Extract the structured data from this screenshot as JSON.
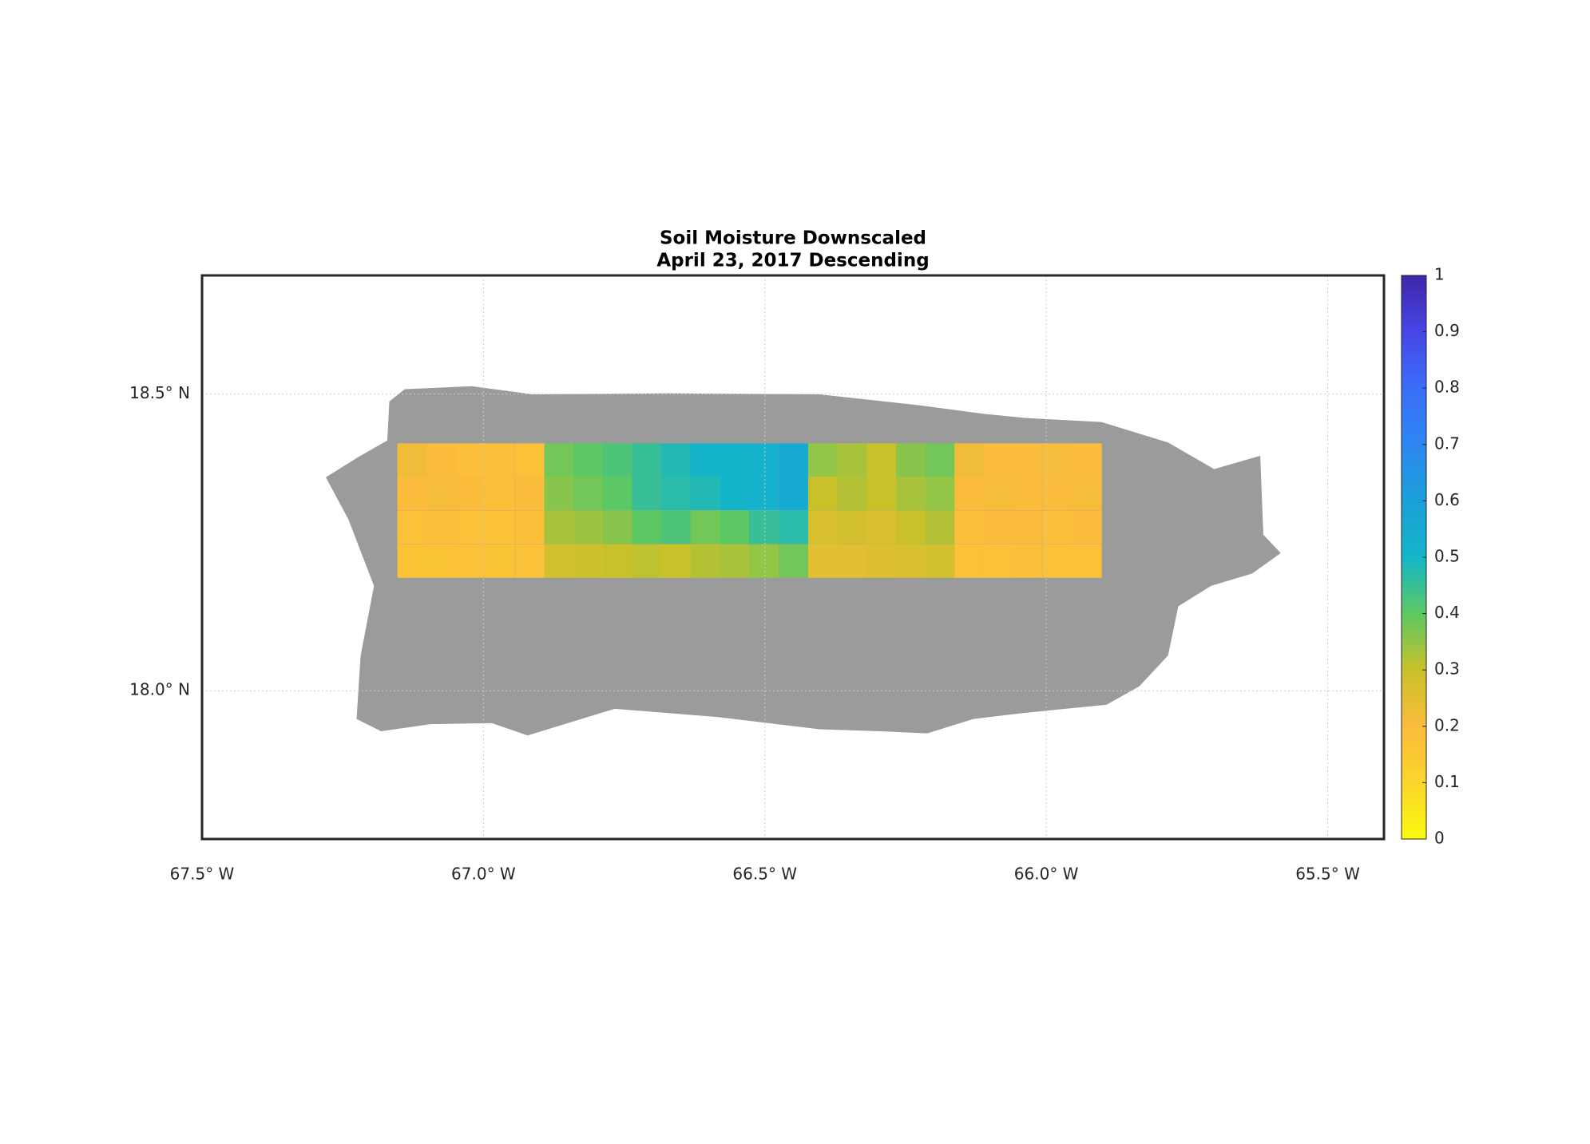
{
  "chart_data": {
    "type": "heatmap",
    "title": "Soil Moisture Downscaled",
    "subtitle": "April 23, 2017 Descending",
    "xlim": [
      -67.5,
      -65.4
    ],
    "ylim": [
      17.75,
      18.7
    ],
    "xticks": [
      {
        "value": -67.5,
        "label": "67.5° W"
      },
      {
        "value": -67.0,
        "label": "67.0° W"
      },
      {
        "value": -66.5,
        "label": "66.5° W"
      },
      {
        "value": -66.0,
        "label": "66.0° W"
      },
      {
        "value": -65.5,
        "label": "65.5° W"
      }
    ],
    "yticks": [
      {
        "value": 18.0,
        "label": "18.0° N"
      },
      {
        "value": 18.5,
        "label": "18.5° N"
      }
    ],
    "grid": true,
    "x": [
      -67.127,
      -67.075,
      -67.023,
      -66.971,
      -66.918,
      -66.866,
      -66.814,
      -66.762,
      -66.71,
      -66.658,
      -66.606,
      -66.554,
      -66.502,
      -66.449,
      -66.397,
      -66.345,
      -66.293,
      -66.241,
      -66.189,
      -66.137,
      -66.085,
      -66.033,
      -65.98,
      -65.928
    ],
    "y": [
      18.389,
      18.333,
      18.276,
      18.219
    ],
    "z": [
      [
        0.22,
        0.2,
        0.19,
        0.19,
        0.18,
        0.38,
        0.4,
        0.42,
        0.45,
        0.48,
        0.5,
        0.5,
        0.52,
        0.55,
        0.35,
        0.33,
        0.3,
        0.36,
        0.38,
        0.22,
        0.2,
        0.2,
        0.21,
        0.2
      ],
      [
        0.2,
        0.21,
        0.2,
        0.19,
        0.2,
        0.36,
        0.38,
        0.4,
        0.45,
        0.47,
        0.48,
        0.5,
        0.52,
        0.55,
        0.3,
        0.32,
        0.3,
        0.33,
        0.35,
        0.2,
        0.21,
        0.2,
        0.2,
        0.21
      ],
      [
        0.18,
        0.19,
        0.18,
        0.18,
        0.19,
        0.33,
        0.34,
        0.36,
        0.4,
        0.42,
        0.38,
        0.4,
        0.45,
        0.47,
        0.27,
        0.28,
        0.27,
        0.3,
        0.32,
        0.19,
        0.2,
        0.2,
        0.19,
        0.2
      ],
      [
        0.17,
        0.17,
        0.18,
        0.17,
        0.18,
        0.28,
        0.29,
        0.3,
        0.31,
        0.3,
        0.32,
        0.33,
        0.35,
        0.38,
        0.25,
        0.25,
        0.26,
        0.27,
        0.28,
        0.18,
        0.18,
        0.19,
        0.18,
        0.18
      ]
    ],
    "clim": [
      0,
      1
    ],
    "cticks": [
      0,
      0.1,
      0.2,
      0.3,
      0.4,
      0.5,
      0.6,
      0.7,
      0.8,
      0.9,
      1
    ],
    "colormap": [
      "#f9fb0e",
      "#fbd52c",
      "#fbbc3c",
      "#c9c12a",
      "#5cc863",
      "#14b5ca",
      "#1ba0d8",
      "#2d86f1",
      "#3b6ef8",
      "#4746e6",
      "#3e26a8"
    ],
    "land_color": "#9b9b9b"
  }
}
